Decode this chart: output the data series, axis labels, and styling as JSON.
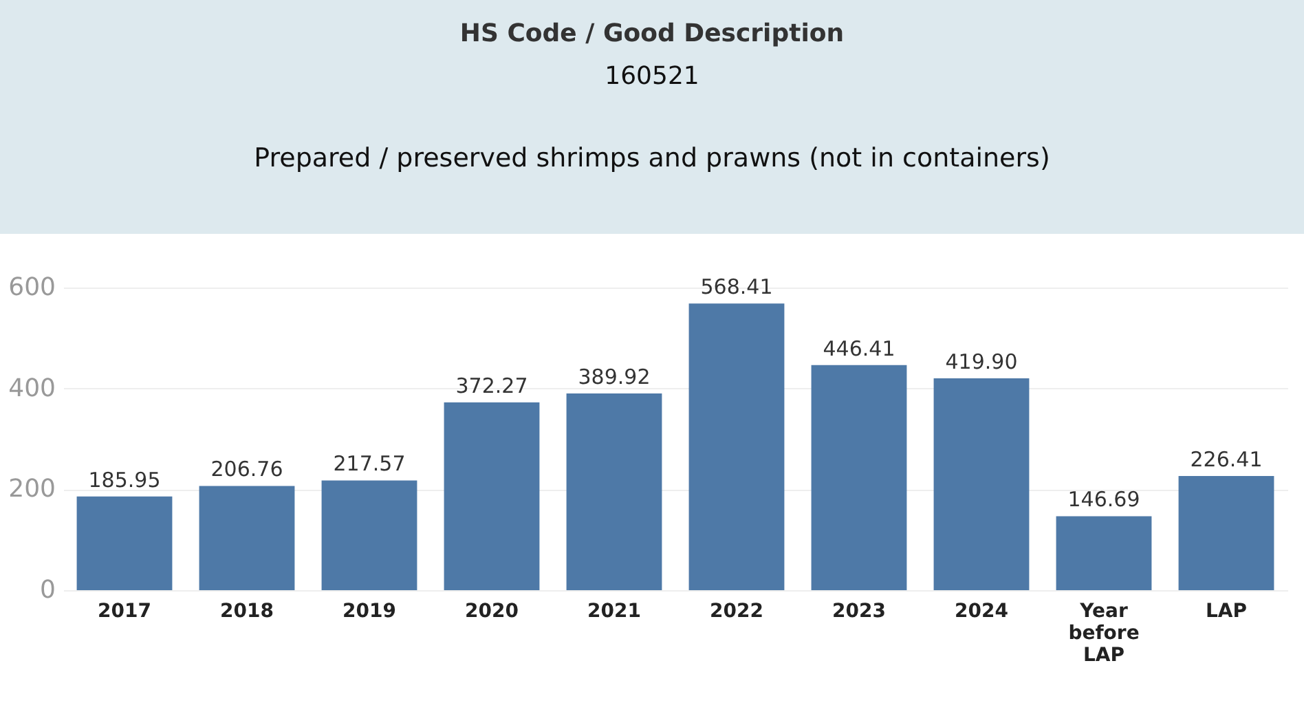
{
  "chart_data": {
    "type": "bar",
    "title": "HS Code  /  Good Description",
    "subtitle": "160521",
    "annotations": [
      "Prepared / preserved shrimps and prawns (not in containers)"
    ],
    "categories": [
      "2017",
      "2018",
      "2019",
      "2020",
      "2021",
      "2022",
      "2023",
      "2024",
      "Year before LAP",
      "LAP"
    ],
    "values": [
      185.95,
      206.76,
      217.57,
      372.27,
      389.92,
      568.41,
      446.41,
      419.9,
      146.69,
      226.41
    ],
    "value_labels": [
      "185.95",
      "206.76",
      "217.57",
      "372.27",
      "389.92",
      "568.41",
      "446.41",
      "419.90",
      "146.69",
      "226.41"
    ],
    "color": "#4e79a7",
    "ylim": [
      0,
      600
    ],
    "yticks": [
      0,
      200,
      400,
      600
    ],
    "grid": "y"
  }
}
